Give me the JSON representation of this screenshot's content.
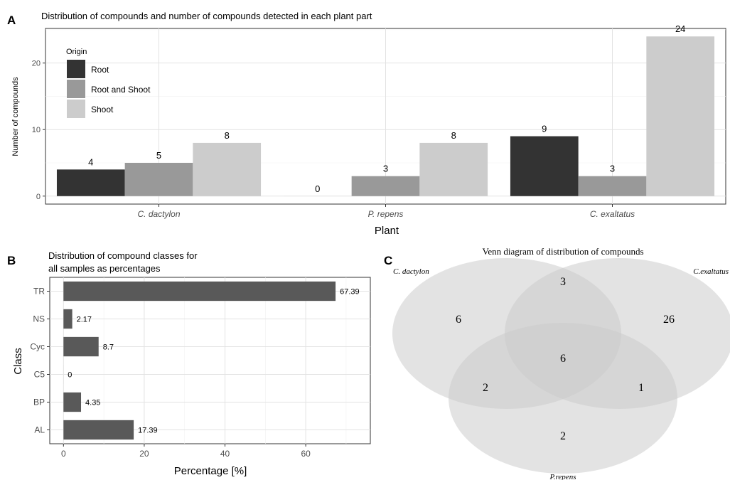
{
  "panel_a": {
    "letter": "A",
    "chart_data": {
      "type": "bar",
      "title": "Distribution of compounds and number of compounds detected in each plant part",
      "xlabel": "Plant",
      "ylabel": "Number of compounds",
      "categories": [
        "C. dactylon",
        "P. repens",
        "C. exaltatus"
      ],
      "series": [
        {
          "name": "Root",
          "values": [
            4,
            0,
            9
          ],
          "color": "#333333"
        },
        {
          "name": "Root and Shoot",
          "values": [
            5,
            3,
            3
          ],
          "color": "#999999"
        },
        {
          "name": "Shoot",
          "values": [
            8,
            8,
            24
          ],
          "color": "#cccccc"
        }
      ],
      "data_labels": [
        [
          "4",
          "5",
          "8"
        ],
        [
          "0",
          "3",
          "8"
        ],
        [
          "9",
          "3",
          "24"
        ]
      ],
      "yticks": [
        0,
        10,
        20
      ],
      "ytick_labels": [
        "0",
        "10",
        "20"
      ],
      "ylim": [
        -1.2,
        25.2
      ],
      "grid": true,
      "legend_title": "Origin",
      "legend_position": "top-left"
    }
  },
  "panel_b": {
    "letter": "B",
    "chart_data": {
      "type": "bar",
      "orientation": "horizontal",
      "title_lines": [
        "Distribution of compound classes for",
        "all samples as percentages"
      ],
      "xlabel": "Percentage [%]",
      "ylabel": "Class",
      "categories": [
        "TR",
        "NS",
        "Cyc",
        "C5",
        "BP",
        "AL"
      ],
      "values": [
        67.39,
        2.17,
        8.7,
        0,
        4.35,
        17.39
      ],
      "data_labels": [
        "67.39",
        "2.17",
        "8.7",
        "0",
        "4.35",
        "17.39"
      ],
      "xticks": [
        0,
        20,
        40,
        60
      ],
      "xtick_labels": [
        "0",
        "20",
        "40",
        "60"
      ],
      "xlim": [
        -3.4,
        76
      ],
      "bar_color": "#595959",
      "grid": true
    }
  },
  "panel_c": {
    "letter": "C",
    "chart_data": {
      "type": "venn",
      "title": "Venn diagram of distribution of compounds",
      "sets": [
        {
          "name": "C. dactylon",
          "only": "6"
        },
        {
          "name": "C.exaltatus",
          "only": "26"
        },
        {
          "name": "P.repens",
          "only": "2"
        }
      ],
      "intersections": {
        "dactylon_exaltatus": "3",
        "all": "6",
        "dactylon_repens": "2",
        "exaltatus_repens": "1"
      },
      "fill_color": "#cccccc"
    }
  }
}
